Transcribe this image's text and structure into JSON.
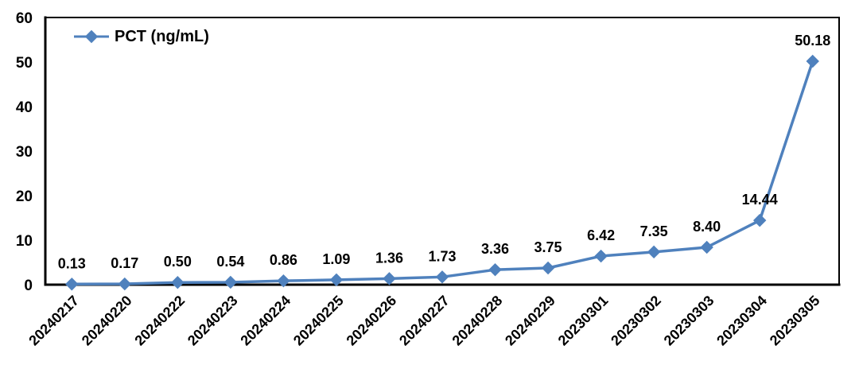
{
  "chart_data": {
    "type": "line",
    "title": "",
    "xlabel": "",
    "ylabel": "",
    "categories": [
      "20240217",
      "20240220",
      "20240222",
      "20240223",
      "20240224",
      "20240225",
      "20240226",
      "20240227",
      "20240228",
      "20240229",
      "20230301",
      "20230302",
      "20230303",
      "20230304",
      "20230305"
    ],
    "series": [
      {
        "name": "PCT (ng/mL)",
        "values": [
          0.13,
          0.17,
          0.5,
          0.54,
          0.86,
          1.09,
          1.36,
          1.73,
          3.36,
          3.75,
          6.42,
          7.35,
          8.4,
          14.44,
          50.18
        ],
        "data_labels": [
          "0.13",
          "0.17",
          "0.50",
          "0.54",
          "0.86",
          "1.09",
          "1.36",
          "1.73",
          "3.36",
          "3.75",
          "6.42",
          "7.35",
          "8.40",
          "14.44",
          "50.18"
        ],
        "color": "#4f81bd",
        "marker": "diamond"
      }
    ],
    "ylim": [
      0,
      60
    ],
    "yticks": [
      "0",
      "10",
      "20",
      "30",
      "40",
      "50",
      "60"
    ],
    "legend": {
      "label": "PCT (ng/mL)",
      "position": "top-left"
    },
    "grid": false,
    "plot_border_color": "#000000",
    "text_color": "#000000",
    "background_color": "#ffffff"
  }
}
